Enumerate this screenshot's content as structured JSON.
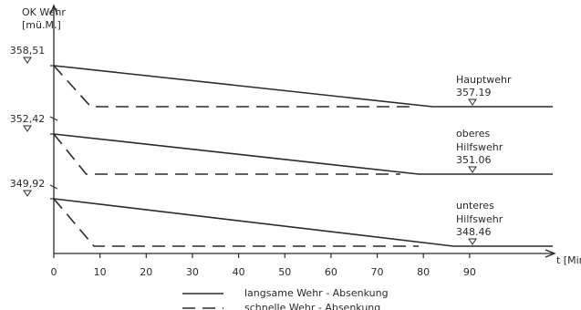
{
  "chart_data": {
    "type": "line",
    "y_label": "OK Wehr",
    "y_unit": "[mü.M.]",
    "x_label": "t [Min]",
    "xlim": [
      0,
      108
    ],
    "xticks": [
      0,
      10,
      20,
      30,
      40,
      50,
      60,
      70,
      80,
      90
    ],
    "color": "#2a2a2a",
    "legend": [
      {
        "name": "langsame Wehr - Absenkung",
        "line_style": "solid"
      },
      {
        "name": "schnelle Wehr - Absenkung",
        "line_style": "dashed"
      }
    ],
    "panels": [
      {
        "name_lines": [
          "Hauptwehr"
        ],
        "end_level": 357.19,
        "ylim": [
          357.19,
          358.51
        ],
        "yticks": [
          {
            "value": 358.51,
            "label": "358,51"
          }
        ],
        "series": [
          {
            "x": [
              0,
              82,
              108
            ],
            "values": [
              358.51,
              357.19,
              357.19
            ]
          },
          {
            "x": [
              0,
              8,
              77
            ],
            "values": [
              358.51,
              357.19,
              357.19
            ]
          }
        ]
      },
      {
        "name_lines": [
          "oberes",
          "Hilfswehr"
        ],
        "end_level": 351.06,
        "ylim": [
          351.06,
          352.42
        ],
        "yticks": [
          {
            "value": 352.42,
            "label": "352,42"
          }
        ],
        "series": [
          {
            "x": [
              0,
              79,
              108
            ],
            "values": [
              352.42,
              351.06,
              351.06
            ]
          },
          {
            "x": [
              0,
              7,
              75
            ],
            "values": [
              352.42,
              351.06,
              351.06
            ]
          }
        ]
      },
      {
        "name_lines": [
          "unteres",
          "Hilfswehr"
        ],
        "end_level": 348.46,
        "ylim": [
          348.46,
          349.92
        ],
        "yticks": [
          {
            "value": 349.92,
            "label": "349,92"
          }
        ],
        "series": [
          {
            "x": [
              0,
              86.5,
              108
            ],
            "values": [
              349.92,
              348.46,
              348.46
            ]
          },
          {
            "x": [
              0,
              8.7,
              79
            ],
            "values": [
              349.92,
              348.46,
              348.46
            ]
          }
        ]
      }
    ]
  }
}
